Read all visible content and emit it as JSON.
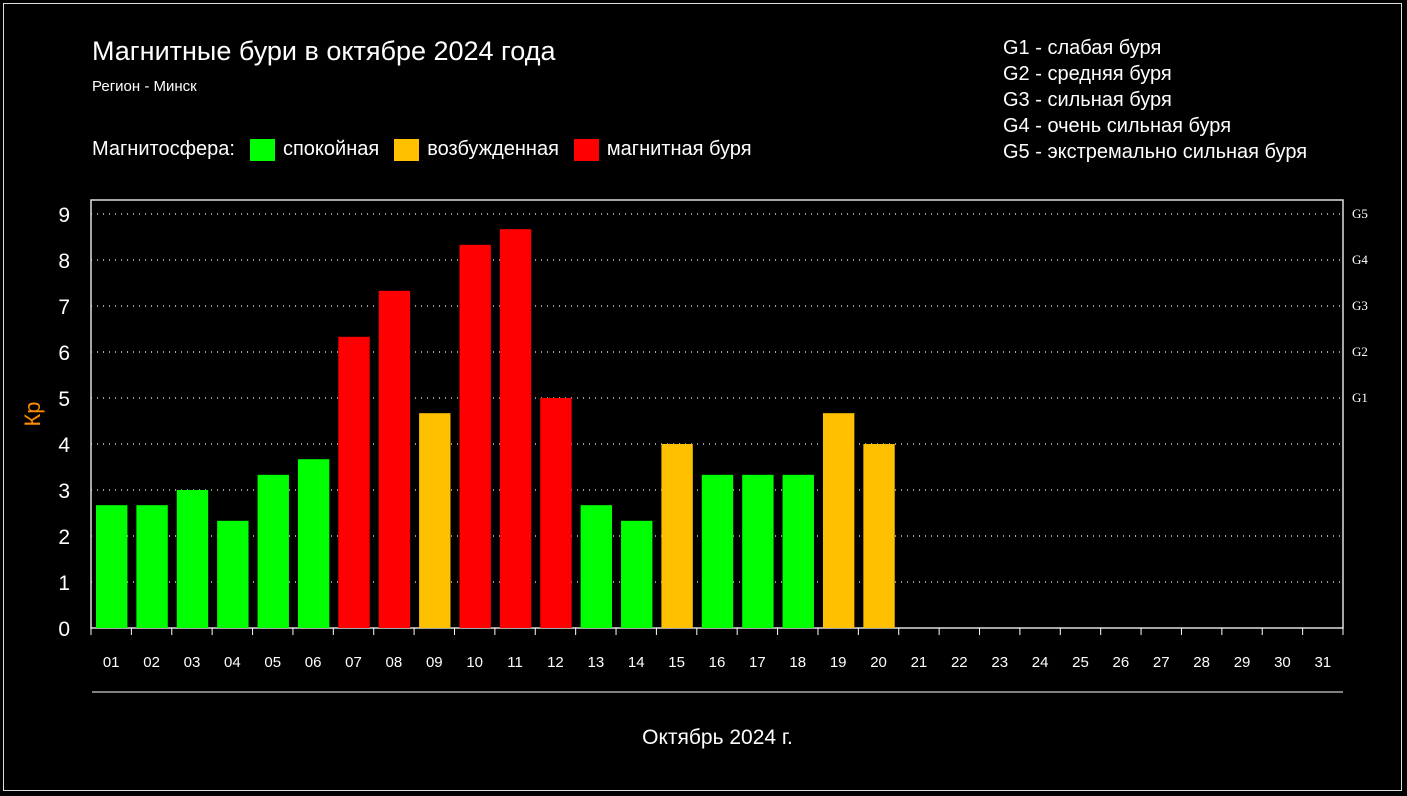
{
  "title": "Магнитные бури в октябре 2024 года",
  "subtitle": "Регион - Минск",
  "legend": {
    "label": "Магнитосфера:",
    "items": [
      {
        "label": "спокойная",
        "color": "#00ff00"
      },
      {
        "label": "возбужденная",
        "color": "#ffc000"
      },
      {
        "label": "магнитная буря",
        "color": "#ff0000"
      }
    ]
  },
  "g_legend": [
    "G1 - слабая буря",
    "G2 - средняя буря",
    "G3 - сильная буря",
    "G4 - очень сильная буря",
    "G5 - экстремально сильная буря"
  ],
  "chart_data": {
    "type": "bar",
    "title": "Магнитные бури в октябре 2024 года",
    "ylabel": "Кр",
    "xlabel": "Октябрь 2024 г.",
    "ylim": [
      0,
      9
    ],
    "yticks": [
      "0",
      "1",
      "2",
      "3",
      "4",
      "5",
      "6",
      "7",
      "8",
      "9"
    ],
    "right_ticks": [
      {
        "value": 5,
        "label": "G1"
      },
      {
        "value": 6,
        "label": "G2"
      },
      {
        "value": 7,
        "label": "G3"
      },
      {
        "value": 8,
        "label": "G4"
      },
      {
        "value": 9,
        "label": "G5"
      }
    ],
    "grid": true,
    "categories": [
      "01",
      "02",
      "03",
      "04",
      "05",
      "06",
      "07",
      "08",
      "09",
      "10",
      "11",
      "12",
      "13",
      "14",
      "15",
      "16",
      "17",
      "18",
      "19",
      "20",
      "21",
      "22",
      "23",
      "24",
      "25",
      "26",
      "27",
      "28",
      "29",
      "30",
      "31"
    ],
    "values": [
      2.67,
      2.67,
      3,
      2.33,
      3.33,
      3.67,
      6.33,
      7.33,
      4.67,
      8.33,
      8.67,
      5,
      2.67,
      2.33,
      4,
      3.33,
      3.33,
      3.33,
      4.67,
      4,
      null,
      null,
      null,
      null,
      null,
      null,
      null,
      null,
      null,
      null,
      null
    ],
    "colors": {
      "quiet": "#00ff00",
      "active": "#ffc000",
      "storm": "#ff0000",
      "ylabel": "#ff8c00"
    }
  }
}
